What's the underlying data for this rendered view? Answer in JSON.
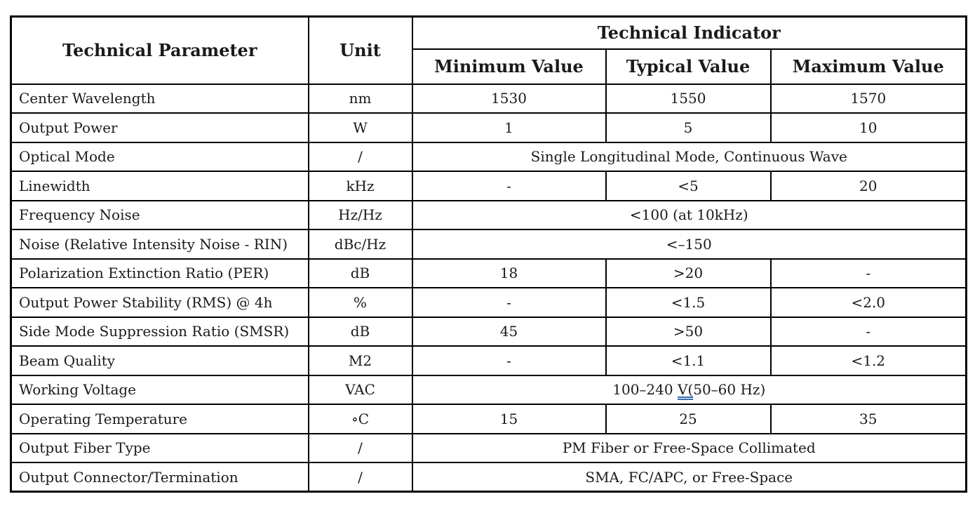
{
  "table": {
    "headers": {
      "parameter": "Technical Parameter",
      "unit": "Unit",
      "indicator": "Technical Indicator",
      "minimum": "Minimum Value",
      "typical": "Typical Value",
      "maximum": "Maximum Value"
    },
    "rows": [
      {
        "param": "Center Wavelength",
        "unit": "nm",
        "values": [
          "1530",
          "1550",
          "1570"
        ]
      },
      {
        "param": "Output Power",
        "unit": "W",
        "values": [
          "1",
          "5",
          "10"
        ]
      },
      {
        "param": "Optical Mode",
        "unit": "/",
        "span_value": "Single Longitudinal Mode, Continuous Wave"
      },
      {
        "param": "Linewidth",
        "unit": "kHz",
        "values": [
          "-",
          "<5",
          "20"
        ]
      },
      {
        "param": "Frequency Noise",
        "unit": "Hz/Hz",
        "span_value": "<100 (at 10kHz)"
      },
      {
        "param": "Noise (Relative Intensity Noise - RIN)",
        "unit": "dBc/Hz",
        "span_value": "<–150"
      },
      {
        "param": "Polarization Extinction Ratio (PER)",
        "unit": "dB",
        "values": [
          "18",
          ">20",
          "-"
        ]
      },
      {
        "param": "Output Power Stability (RMS) @ 4h",
        "unit": "%",
        "values": [
          "-",
          "<1.5",
          "<2.0"
        ]
      },
      {
        "param": "Side Mode Suppression Ratio (SMSR)",
        "unit": "dB",
        "values": [
          "45",
          ">50",
          "-"
        ]
      },
      {
        "param": "Beam Quality",
        "unit": "M2",
        "values": [
          "-",
          "<1.1",
          "<1.2"
        ]
      },
      {
        "param": "Working Voltage",
        "unit": "VAC",
        "span_parts": {
          "before": "100–240 ",
          "underlined": "V(",
          "after": "50–60 Hz)"
        }
      },
      {
        "param": "Operating Temperature",
        "unit": "∘C",
        "values": [
          "15",
          "25",
          "35"
        ]
      },
      {
        "param": "Output Fiber Type",
        "unit": "/",
        "span_value": "PM Fiber or Free-Space Collimated"
      },
      {
        "param": "Output Connector/Termination",
        "unit": "/",
        "span_value": "SMA, FC/APC, or Free-Space"
      }
    ],
    "grammar_underline_color": "#3a69b0"
  }
}
